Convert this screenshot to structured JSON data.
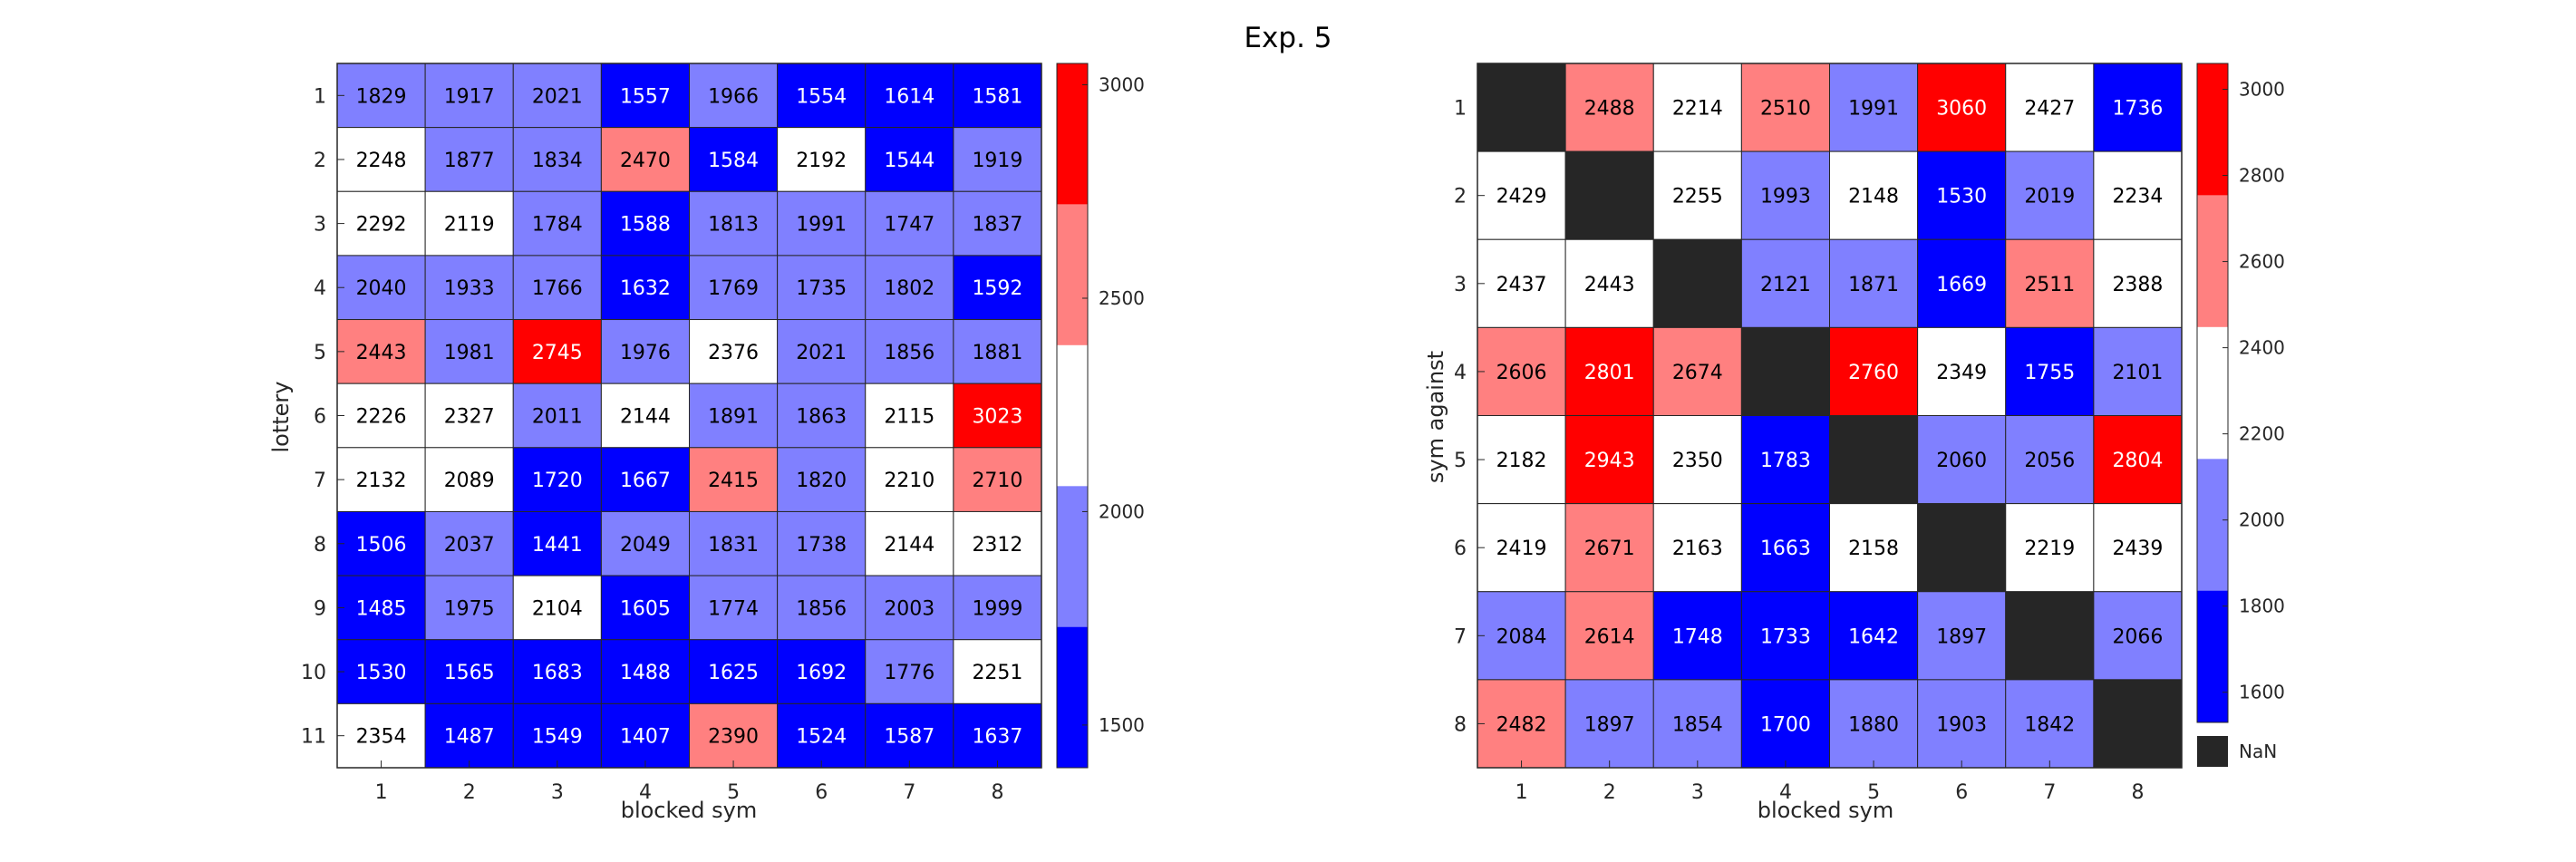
{
  "title": "Exp. 5",
  "colors": {
    "blue": "#0000ff",
    "light_blue": "#8080ff",
    "white": "#ffffff",
    "light_red": "#ff8080",
    "red": "#ff0000",
    "nan": "#262626"
  },
  "chart_data": [
    {
      "type": "heatmap",
      "xlabel": "blocked sym",
      "ylabel": "lottery",
      "x_categories": [
        "1",
        "2",
        "3",
        "4",
        "5",
        "6",
        "7",
        "8"
      ],
      "y_categories": [
        "1",
        "2",
        "3",
        "4",
        "5",
        "6",
        "7",
        "8",
        "9",
        "10",
        "11"
      ],
      "values": [
        [
          1829,
          1917,
          2021,
          1557,
          1966,
          1554,
          1614,
          1581
        ],
        [
          2248,
          1877,
          1834,
          2470,
          1584,
          2192,
          1544,
          1919
        ],
        [
          2292,
          2119,
          1784,
          1588,
          1813,
          1991,
          1747,
          1837
        ],
        [
          2040,
          1933,
          1766,
          1632,
          1769,
          1735,
          1802,
          1592
        ],
        [
          2443,
          1981,
          2745,
          1976,
          2376,
          2021,
          1856,
          1881
        ],
        [
          2226,
          2327,
          2011,
          2144,
          1891,
          1863,
          2115,
          3023
        ],
        [
          2132,
          2089,
          1720,
          1667,
          2415,
          1820,
          2210,
          2710
        ],
        [
          1506,
          2037,
          1441,
          2049,
          1831,
          1738,
          2144,
          2312
        ],
        [
          1485,
          1975,
          2104,
          1605,
          1774,
          1856,
          2003,
          1999
        ],
        [
          1530,
          1565,
          1683,
          1488,
          1625,
          1692,
          1776,
          2251
        ],
        [
          2354,
          1487,
          1549,
          1407,
          2390,
          1524,
          1587,
          1637
        ]
      ],
      "colorbar": {
        "min": 1400,
        "max": 3050,
        "boundaries": [
          1730,
          2060,
          2390,
          2720
        ],
        "ticks": [
          "1500",
          "2000",
          "2500",
          "3000"
        ],
        "tick_values": [
          1500,
          2000,
          2500,
          3000
        ]
      }
    },
    {
      "type": "heatmap",
      "xlabel": "blocked sym",
      "ylabel": "sym against",
      "x_categories": [
        "1",
        "2",
        "3",
        "4",
        "5",
        "6",
        "7",
        "8"
      ],
      "y_categories": [
        "1",
        "2",
        "3",
        "4",
        "5",
        "6",
        "7",
        "8"
      ],
      "values": [
        [
          null,
          2488,
          2214,
          2510,
          1991,
          3060,
          2427,
          1736
        ],
        [
          2429,
          null,
          2255,
          1993,
          2148,
          1530,
          2019,
          2234
        ],
        [
          2437,
          2443,
          null,
          2121,
          1871,
          1669,
          2511,
          2388
        ],
        [
          2606,
          2801,
          2674,
          null,
          2760,
          2349,
          1755,
          2101
        ],
        [
          2182,
          2943,
          2350,
          1783,
          null,
          2060,
          2056,
          2804
        ],
        [
          2419,
          2671,
          2163,
          1663,
          2158,
          null,
          2219,
          2439
        ],
        [
          2084,
          2614,
          1748,
          1733,
          1642,
          1897,
          null,
          2066
        ],
        [
          2482,
          1897,
          1854,
          1700,
          1880,
          1903,
          1842,
          null
        ]
      ],
      "colorbar": {
        "min": 1530,
        "max": 3060,
        "boundaries": [
          1836,
          2142,
          2448,
          2754
        ],
        "ticks": [
          "1600",
          "1800",
          "2000",
          "2200",
          "2400",
          "2600",
          "2800",
          "3000"
        ],
        "tick_values": [
          1600,
          1800,
          2000,
          2200,
          2400,
          2600,
          2800,
          3000
        ]
      },
      "nan_label": "NaN"
    }
  ]
}
